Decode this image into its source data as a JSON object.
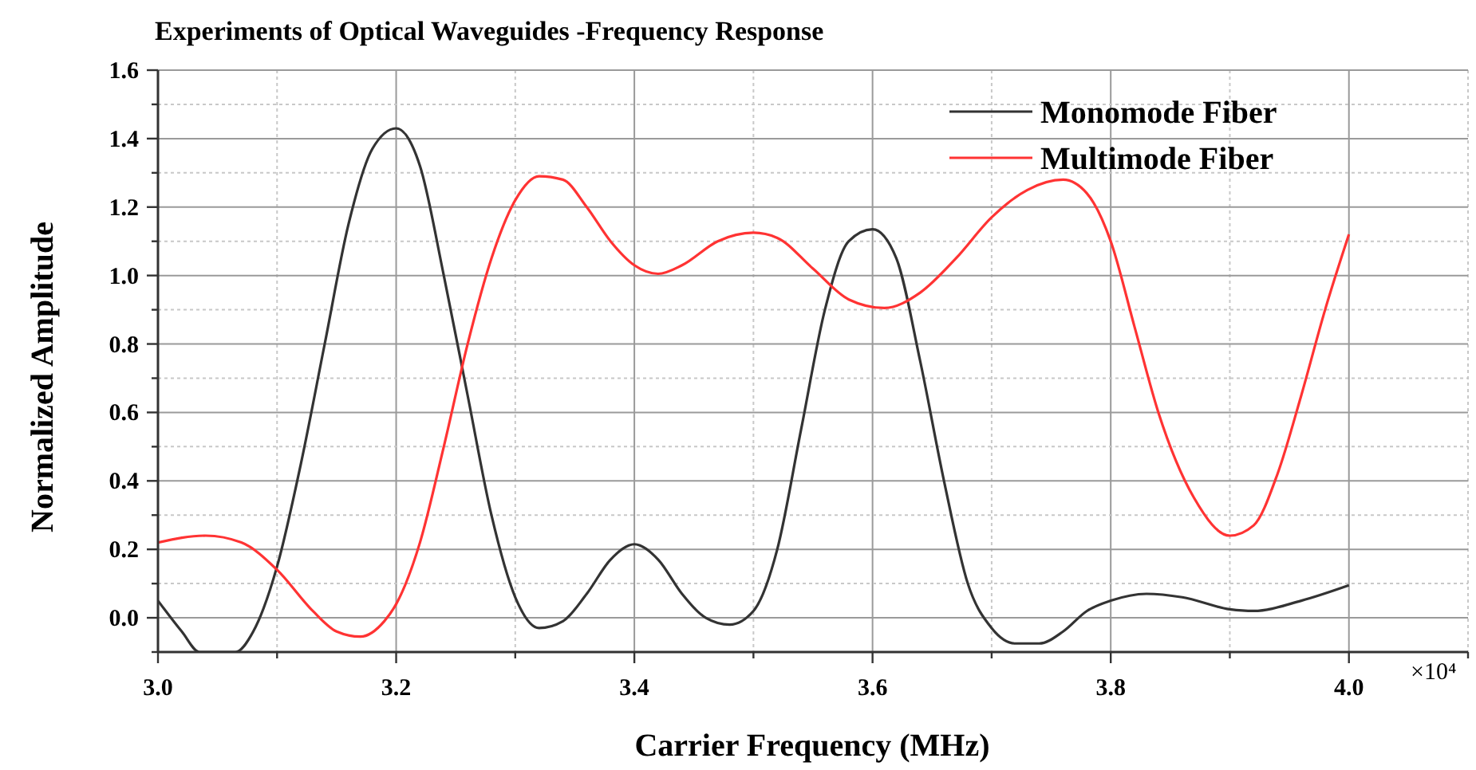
{
  "chart_data": {
    "type": "line",
    "title": "Experiments of  Optical Waveguides -Frequency Response",
    "xlabel": "Carrier Frequency (MHz)",
    "ylabel": "Normalized Amplitude",
    "annotations": [
      "×10⁴"
    ],
    "xlim": [
      3.0,
      4.1
    ],
    "ylim": [
      -0.1,
      1.6
    ],
    "xticks": [
      {
        "value": 3.0,
        "label": "3.0"
      },
      {
        "value": 3.1,
        "label": null
      },
      3.2,
      {
        "value": 3.3,
        "label": null
      },
      3.4,
      {
        "value": 3.5,
        "label": null
      },
      3.6,
      {
        "value": 3.7,
        "label": null
      },
      3.8,
      {
        "value": 3.9,
        "label": null
      },
      {
        "value": 4.0,
        "label": "4.0"
      },
      {
        "value": 4.1,
        "label": null
      }
    ],
    "yticks": [
      {
        "value": -0.1,
        "label": null
      },
      {
        "value": 0.0,
        "label": "0.0"
      },
      {
        "value": 0.1,
        "label": null
      },
      0.2,
      {
        "value": 0.3,
        "label": null
      },
      0.4,
      {
        "value": 0.5,
        "label": null
      },
      0.6,
      {
        "value": 0.7,
        "label": null
      },
      0.8,
      {
        "value": 0.9,
        "label": null
      },
      {
        "value": 1.0,
        "label": "1.0"
      },
      {
        "value": 1.1,
        "label": null
      },
      1.2,
      {
        "value": 1.3,
        "label": null
      },
      1.4,
      {
        "value": 1.5,
        "label": null
      },
      1.6
    ],
    "grid": true,
    "legend": "top right",
    "marker": "none",
    "line_style": "solid",
    "series": [
      {
        "name": "Monomode Fiber",
        "color": "#333333",
        "x": [
          3.0,
          3.02,
          3.035,
          3.065,
          3.08,
          3.1,
          3.12,
          3.14,
          3.16,
          3.18,
          3.2,
          3.22,
          3.24,
          3.26,
          3.28,
          3.3,
          3.32,
          3.34,
          3.36,
          3.38,
          3.4,
          3.42,
          3.44,
          3.46,
          3.48,
          3.5,
          3.52,
          3.54,
          3.56,
          3.58,
          3.6,
          3.62,
          3.64,
          3.66,
          3.68,
          3.7,
          3.72,
          3.74,
          3.76,
          3.78,
          3.8,
          3.83,
          3.86,
          3.9,
          3.92,
          3.96,
          4.0
        ],
        "values": [
          0.05,
          -0.04,
          -0.1,
          -0.1,
          -0.04,
          0.15,
          0.45,
          0.8,
          1.15,
          1.37,
          1.43,
          1.32,
          1.0,
          0.65,
          0.3,
          0.06,
          -0.03,
          -0.01,
          0.07,
          0.17,
          0.215,
          0.17,
          0.07,
          0.0,
          -0.02,
          0.02,
          0.2,
          0.55,
          0.9,
          1.1,
          1.135,
          1.05,
          0.75,
          0.4,
          0.1,
          -0.03,
          -0.075,
          -0.075,
          -0.04,
          0.02,
          0.05,
          0.07,
          0.06,
          0.025,
          0.02,
          0.05,
          0.095
        ]
      },
      {
        "name": "Multimode Fiber",
        "color": "#ff3333",
        "x": [
          3.0,
          3.04,
          3.07,
          3.1,
          3.13,
          3.15,
          3.17,
          3.19,
          3.2,
          3.22,
          3.24,
          3.26,
          3.28,
          3.3,
          3.32,
          3.34,
          3.36,
          3.38,
          3.4,
          3.42,
          3.44,
          3.47,
          3.5,
          3.52,
          3.55,
          3.58,
          3.61,
          3.64,
          3.67,
          3.7,
          3.73,
          3.76,
          3.78,
          3.8,
          3.82,
          3.84,
          3.87,
          3.9,
          3.92,
          3.94,
          3.96,
          3.98,
          4.0
        ],
        "values": [
          0.22,
          0.24,
          0.22,
          0.14,
          0.02,
          -0.04,
          -0.055,
          -0.01,
          0.04,
          0.22,
          0.5,
          0.8,
          1.05,
          1.22,
          1.29,
          1.28,
          1.2,
          1.1,
          1.03,
          1.005,
          1.03,
          1.1,
          1.125,
          1.11,
          1.02,
          0.93,
          0.905,
          0.95,
          1.05,
          1.17,
          1.25,
          1.28,
          1.24,
          1.1,
          0.85,
          0.6,
          0.35,
          0.24,
          0.27,
          0.42,
          0.65,
          0.9,
          1.12
        ]
      }
    ]
  }
}
